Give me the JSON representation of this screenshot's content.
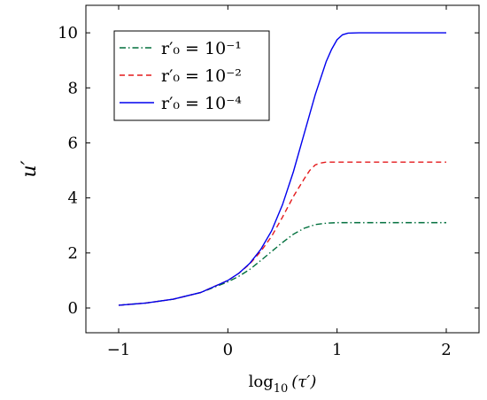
{
  "chart_data": {
    "type": "line",
    "xlabel_main": "log",
    "xlabel_sub": "10",
    "xlabel_arg": "(τ′)",
    "ylabel": "u′",
    "xlim": [
      -1.3,
      2.3
    ],
    "ylim": [
      -0.9,
      11
    ],
    "xticks": [
      -1,
      0,
      1,
      2
    ],
    "xtick_labels": [
      "−1",
      "0",
      "1",
      "2"
    ],
    "yticks": [
      0,
      2,
      4,
      6,
      8,
      10
    ],
    "ytick_labels": [
      "0",
      "2",
      "4",
      "6",
      "8",
      "10"
    ],
    "legend_placement": "top-left",
    "series": [
      {
        "name": "r′₀ = 10⁻¹",
        "color": "#006f3c",
        "style": "dashdot",
        "x": [
          -1.0,
          -0.75,
          -0.5,
          -0.25,
          0.0,
          0.1,
          0.2,
          0.3,
          0.4,
          0.5,
          0.6,
          0.7,
          0.8,
          0.9,
          1.0,
          1.25,
          1.5,
          1.75,
          2.0
        ],
        "y": [
          0.1,
          0.18,
          0.32,
          0.56,
          0.95,
          1.15,
          1.4,
          1.72,
          2.05,
          2.38,
          2.68,
          2.9,
          3.03,
          3.08,
          3.1,
          3.1,
          3.1,
          3.1,
          3.1
        ]
      },
      {
        "name": "r′₀ = 10⁻²",
        "color": "#e41a1c",
        "style": "dashed",
        "x": [
          -1.0,
          -0.75,
          -0.5,
          -0.25,
          0.0,
          0.1,
          0.2,
          0.3,
          0.4,
          0.5,
          0.6,
          0.7,
          0.75,
          0.8,
          0.85,
          0.9,
          1.0,
          1.25,
          1.5,
          1.75,
          2.0
        ],
        "y": [
          0.1,
          0.18,
          0.32,
          0.56,
          1.0,
          1.26,
          1.6,
          2.05,
          2.6,
          3.3,
          4.05,
          4.7,
          5.0,
          5.2,
          5.27,
          5.3,
          5.3,
          5.3,
          5.3,
          5.3,
          5.3
        ]
      },
      {
        "name": "r′₀ = 10⁻⁴",
        "color": "#0000ee",
        "style": "solid",
        "x": [
          -1.0,
          -0.75,
          -0.5,
          -0.25,
          0.0,
          0.1,
          0.2,
          0.3,
          0.4,
          0.5,
          0.6,
          0.7,
          0.8,
          0.9,
          0.95,
          1.0,
          1.05,
          1.1,
          1.2,
          1.5,
          1.75,
          2.0
        ],
        "y": [
          0.1,
          0.18,
          0.32,
          0.56,
          1.0,
          1.26,
          1.62,
          2.12,
          2.8,
          3.75,
          4.95,
          6.35,
          7.75,
          8.95,
          9.4,
          9.75,
          9.93,
          9.99,
          10.0,
          10.0,
          10.0,
          10.0
        ]
      }
    ]
  }
}
